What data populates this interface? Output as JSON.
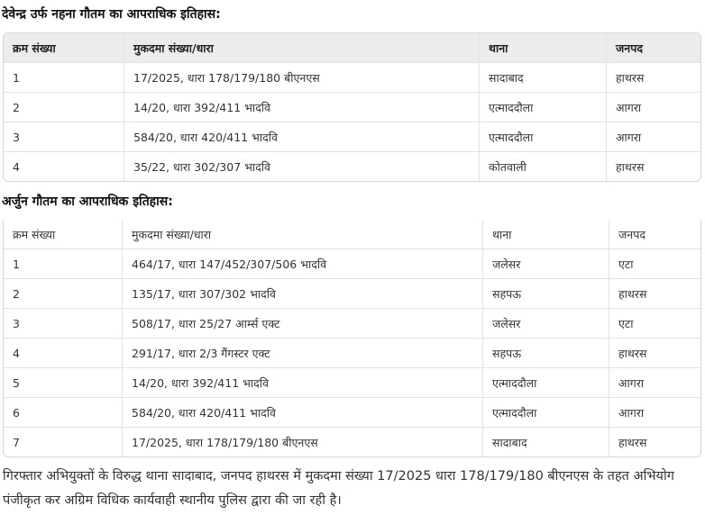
{
  "table1": {
    "title": "देवेन्द्र उर्फ नहना गौतम का आपराधिक इतिहास:",
    "headers": [
      "क्रम संख्या",
      "मुकदमा संख्या/धारा",
      "थाना",
      "जनपद"
    ],
    "rows": [
      [
        "1",
        "17/2025, धारा 178/179/180 बीएनएस",
        "सादाबाद",
        "हाथरस"
      ],
      [
        "2",
        "14/20, धारा 392/411 भादवि",
        "एत्माददौला",
        "आगरा"
      ],
      [
        "3",
        "584/20, धारा 420/411 भादवि",
        "एत्माददौला",
        "आगरा"
      ],
      [
        "4",
        "35/22, धारा 302/307 भादवि",
        "कोतवाली",
        "हाथरस"
      ]
    ]
  },
  "table2": {
    "title": "अर्जुन गौतम का आपराधिक इतिहास:",
    "headers": [
      "क्रम संख्या",
      "मुकदमा संख्या/धारा",
      "थाना",
      "जनपद"
    ],
    "rows": [
      [
        "1",
        "464/17, धारा 147/452/307/506 भादवि",
        "जलेसर",
        "एटा"
      ],
      [
        "2",
        "135/17, धारा 307/302 भादवि",
        "सहपऊ",
        "हाथरस"
      ],
      [
        "3",
        "508/17, धारा 25/27 आर्म्स एक्ट",
        "जलेसर",
        "एटा"
      ],
      [
        "4",
        "291/17, धारा 2/3 गैंगस्टर एक्ट",
        "सहपऊ",
        "हाथरस"
      ],
      [
        "5",
        "14/20, धारा 392/411 भादवि",
        "एत्माददौला",
        "आगरा"
      ],
      [
        "6",
        "584/20, धारा 420/411 भादवि",
        "एत्माददौला",
        "आगरा"
      ],
      [
        "7",
        "17/2025, धारा 178/179/180 बीएनएस",
        "सादाबाद",
        "हाथरस"
      ]
    ]
  },
  "paragraph": "गिरफ्तार अभियुक्तों के विरुद्ध थाना सादाबाद, जनपद हाथरस में मुकदमा संख्या 17/2025 धारा 178/179/180 बीएनएस के तहत अभियोग पंजीकृत कर अग्रिम विधिक कार्यवाही स्थानीय पुलिस द्वारा की जा रही है।"
}
